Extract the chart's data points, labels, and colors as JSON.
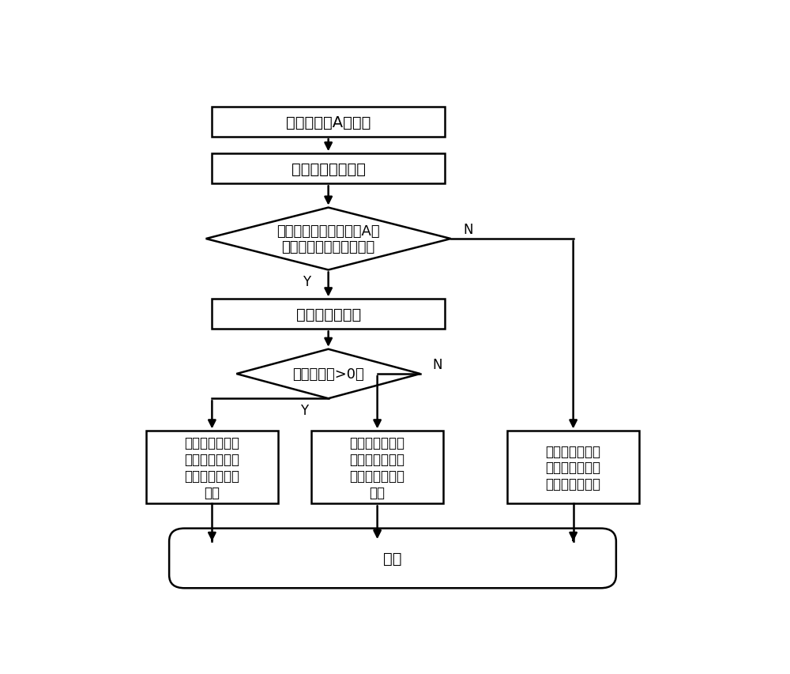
{
  "bg_color": "#ffffff",
  "border_color": "#000000",
  "text_color": "#000000",
  "arrow_color": "#000000",
  "lw": 1.8,
  "font_size": 14,
  "small_font_size": 13,
  "label_font_size": 12,
  "b1_text": "测量低频侧A相电压",
  "b2_text": "接收虚拟同期信号",
  "d1_text": "虚拟同期信号与低频侧A相\n电压是否满足同期条件？",
  "b3_text": "测量低频侧电流",
  "d2_text": "电流瞬时值>0？",
  "bl_text": "发出正反桥切换\n信号，内容为：\n开通正桥，关闭\n反桥",
  "bm_text": "发出正反桥切换\n信号，内容为：\n开通反桥，关闭\n正桥",
  "br_text": "发出正反桥切换\n信号，内容为：\n同时关闭正反桥",
  "end_text": "结束",
  "y_label": "Y",
  "n_label": "N"
}
